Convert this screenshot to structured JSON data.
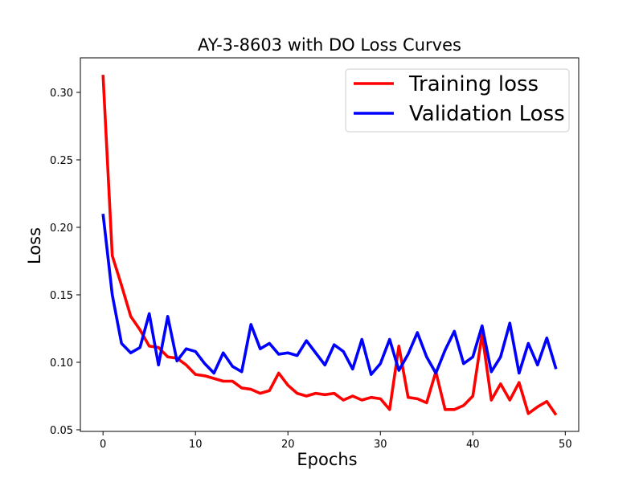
{
  "chart_data": {
    "type": "line",
    "title": "AY-3-8603 with DO Loss Curves",
    "xlabel": "Epochs",
    "ylabel": "Loss",
    "xlim": [
      -2.45,
      51.45
    ],
    "ylim": [
      0.0488,
      0.3256
    ],
    "xticks": [
      0,
      10,
      20,
      30,
      40,
      50
    ],
    "yticks": [
      0.05,
      0.1,
      0.15,
      0.2,
      0.25,
      0.3
    ],
    "ytick_labels": [
      "0.05",
      "0.10",
      "0.15",
      "0.20",
      "0.25",
      "0.30"
    ],
    "grid": false,
    "legend_position": "top-right",
    "x": [
      0,
      1,
      2,
      3,
      4,
      5,
      6,
      7,
      8,
      9,
      10,
      11,
      12,
      13,
      14,
      15,
      16,
      17,
      18,
      19,
      20,
      21,
      22,
      23,
      24,
      25,
      26,
      27,
      28,
      29,
      30,
      31,
      32,
      33,
      34,
      35,
      36,
      37,
      38,
      39,
      40,
      41,
      42,
      43,
      44,
      45,
      46,
      47,
      48,
      49
    ],
    "series": [
      {
        "name": "Training loss",
        "color": "#ff0000",
        "values": [
          0.313,
          0.179,
          0.157,
          0.134,
          0.124,
          0.112,
          0.111,
          0.104,
          0.103,
          0.098,
          0.091,
          0.09,
          0.088,
          0.086,
          0.086,
          0.081,
          0.08,
          0.077,
          0.079,
          0.092,
          0.083,
          0.077,
          0.075,
          0.077,
          0.076,
          0.077,
          0.072,
          0.075,
          0.072,
          0.074,
          0.073,
          0.065,
          0.112,
          0.074,
          0.073,
          0.07,
          0.093,
          0.065,
          0.065,
          0.068,
          0.075,
          0.121,
          0.072,
          0.084,
          0.072,
          0.085,
          0.062,
          0.067,
          0.071,
          0.061
        ]
      },
      {
        "name": "Validation Loss",
        "color": "#0000ff",
        "values": [
          0.21,
          0.15,
          0.114,
          0.107,
          0.111,
          0.136,
          0.098,
          0.134,
          0.101,
          0.11,
          0.108,
          0.099,
          0.092,
          0.107,
          0.097,
          0.093,
          0.128,
          0.11,
          0.114,
          0.106,
          0.107,
          0.105,
          0.116,
          0.107,
          0.098,
          0.113,
          0.108,
          0.095,
          0.117,
          0.091,
          0.099,
          0.117,
          0.094,
          0.106,
          0.122,
          0.104,
          0.092,
          0.109,
          0.123,
          0.099,
          0.104,
          0.127,
          0.093,
          0.104,
          0.129,
          0.092,
          0.114,
          0.098,
          0.118,
          0.095
        ]
      }
    ]
  }
}
